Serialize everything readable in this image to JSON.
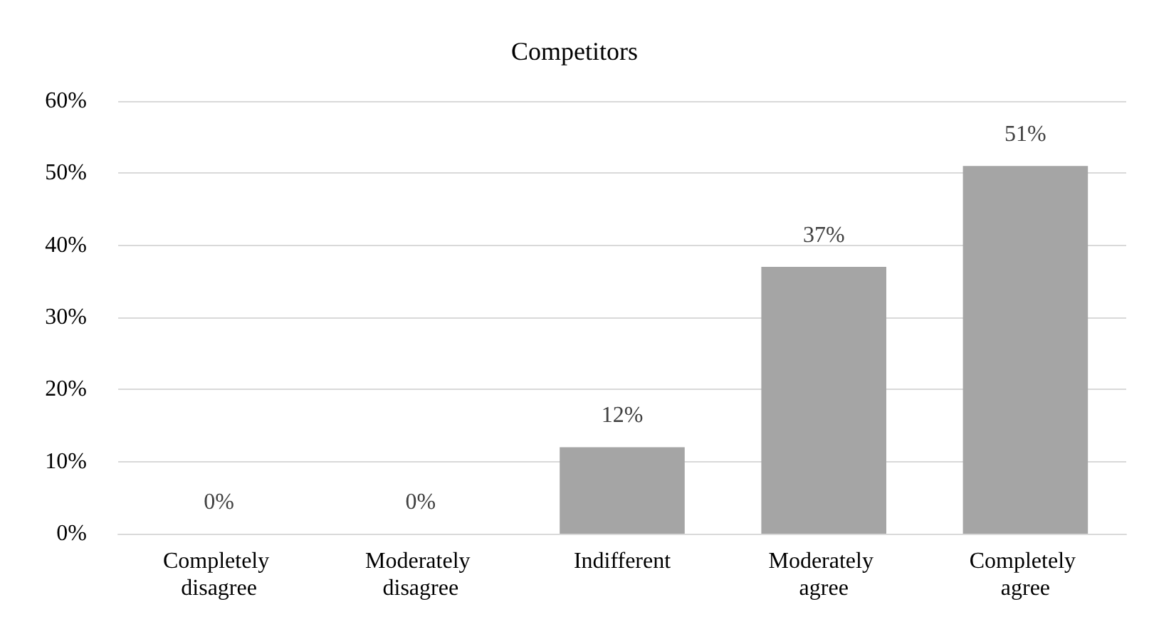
{
  "chart_data": {
    "type": "bar",
    "title": "Competitors",
    "categories": [
      "Completely disagree",
      "Moderately disagree",
      "Indifferent",
      "Moderately agree",
      "Completely agree"
    ],
    "values": [
      0,
      0,
      12,
      37,
      51
    ],
    "color": "#a5a5a5",
    "ylim": [
      0,
      60
    ],
    "yticks": [
      {
        "value": 0,
        "label": "0%"
      },
      {
        "value": 10,
        "label": "10%"
      },
      {
        "value": 20,
        "label": "20%"
      },
      {
        "value": 30,
        "label": "30%"
      },
      {
        "value": 40,
        "label": "40%"
      },
      {
        "value": 50,
        "label": "50%"
      },
      {
        "value": 60,
        "label": "60%"
      }
    ],
    "value_labels": [
      "0%",
      "0%",
      "12%",
      "37%",
      "51%"
    ],
    "grid": "y"
  }
}
